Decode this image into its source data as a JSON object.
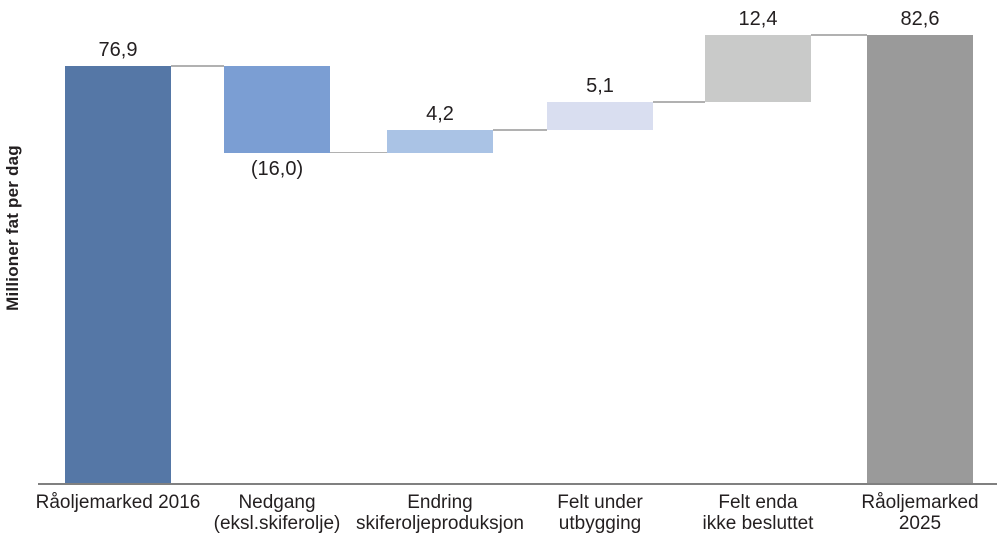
{
  "chart_data": {
    "type": "waterfall",
    "ylabel": "Millioner fat per dag",
    "categories": [
      "Råoljemarked 2016",
      "Nedgang\n(eksl.skiferolje)",
      "Endring\nskiferoljeproduksjon",
      "Felt under\nutbygging",
      "Felt enda\nikke besluttet",
      "Råoljemarked\n2025"
    ],
    "values": [
      76.9,
      -16.0,
      4.2,
      5.1,
      12.4,
      82.6
    ],
    "value_labels": [
      "76,9",
      "(16,0)",
      "4,2",
      "5,1",
      "12,4",
      "82,6"
    ],
    "bar_roles": [
      "start-total",
      "decrease",
      "increase",
      "increase",
      "increase",
      "end-total"
    ],
    "bar_colors": [
      "#5577A6",
      "#7B9ED3",
      "#AAC3E5",
      "#D9DEF0",
      "#C9CAC9",
      "#9A9A9A"
    ],
    "connector_color": "#B1B1B1",
    "axis_color": "#808080",
    "text_color": "#231F20",
    "baseline": 0,
    "ylim": [
      0,
      88
    ],
    "grid": false,
    "legend": null
  }
}
